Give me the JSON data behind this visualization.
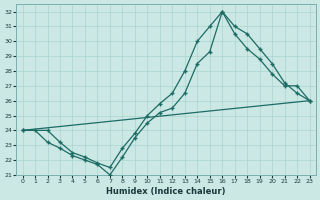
{
  "xlabel": "Humidex (Indice chaleur)",
  "background_color": "#cce8e5",
  "line_color": "#1d6b65",
  "grid_color": "#aad4cf",
  "xlim": [
    -0.5,
    23.5
  ],
  "ylim": [
    21,
    32.5
  ],
  "yticks": [
    21,
    22,
    23,
    24,
    25,
    26,
    27,
    28,
    29,
    30,
    31,
    32
  ],
  "xticks": [
    0,
    1,
    2,
    3,
    4,
    5,
    6,
    7,
    8,
    9,
    10,
    11,
    12,
    13,
    14,
    15,
    16,
    17,
    18,
    19,
    20,
    21,
    22,
    23
  ],
  "line1_x": [
    0,
    1,
    2,
    3,
    4,
    5,
    6,
    7,
    8,
    9,
    10,
    11,
    12,
    13,
    14,
    15,
    16,
    17,
    18,
    19,
    20,
    21,
    22,
    23
  ],
  "line1_y": [
    24,
    24,
    23.2,
    22.8,
    22.3,
    22,
    21.7,
    21,
    22.2,
    23.5,
    24.5,
    25.2,
    25.5,
    26.5,
    28.5,
    29.3,
    32,
    31,
    30.5,
    29.5,
    28.5,
    27.2,
    26.5,
    26
  ],
  "line2_x": [
    0,
    2,
    3,
    4,
    5,
    6,
    7,
    8,
    9,
    10,
    11,
    12,
    13,
    14,
    15,
    16,
    17,
    18,
    19,
    20,
    21,
    22,
    23
  ],
  "line2_y": [
    24,
    24,
    23.2,
    22.5,
    22.2,
    21.8,
    21.5,
    22.8,
    23.8,
    25,
    25.8,
    26.5,
    28,
    30,
    31,
    32,
    30.5,
    29.5,
    28.8,
    27.8,
    27,
    27,
    26
  ],
  "line3_x": [
    0,
    23
  ],
  "line3_y": [
    24,
    26
  ],
  "marker_size": 2.5,
  "linewidth": 0.9
}
